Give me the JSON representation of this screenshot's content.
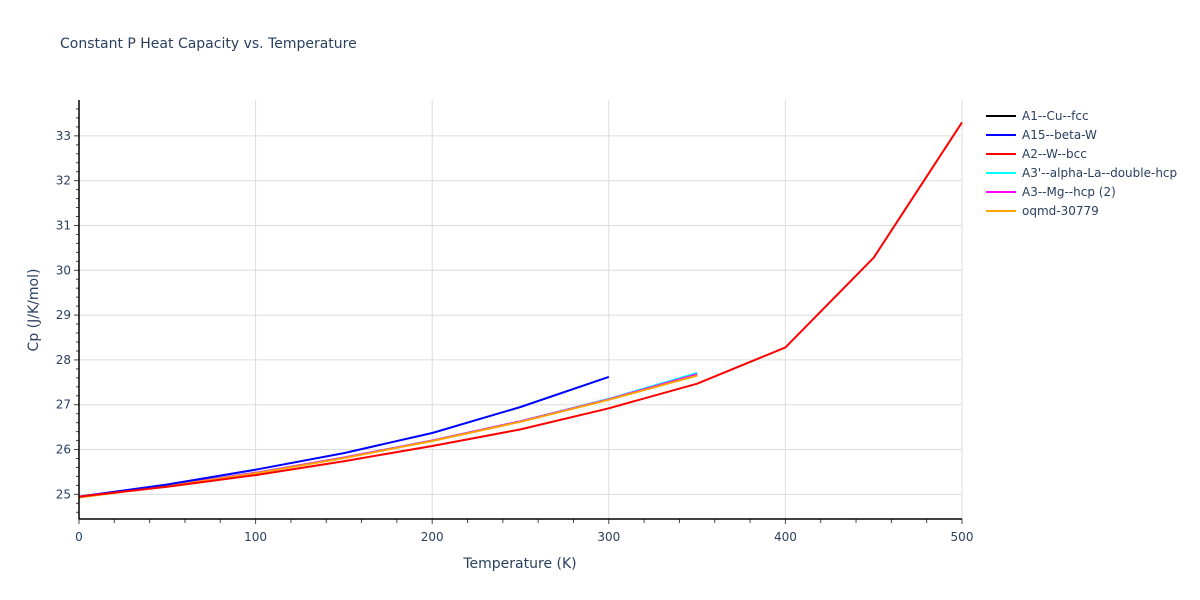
{
  "chart_data": {
    "type": "line",
    "title": "Constant P Heat Capacity vs. Temperature",
    "xlabel": "Temperature (K)",
    "ylabel": "Cp (J/K/mol)",
    "xlim": [
      0,
      500
    ],
    "ylim": [
      24.45,
      33.8
    ],
    "xticks": [
      0,
      100,
      200,
      300,
      400,
      500
    ],
    "yticks": [
      25,
      26,
      27,
      28,
      29,
      30,
      31,
      32,
      33
    ],
    "grid": true,
    "legend_position": "right",
    "series": [
      {
        "name": "A1--Cu--fcc",
        "color": "#000000",
        "x": [
          0,
          50,
          100,
          150,
          200,
          250,
          300,
          350
        ],
        "values": [
          24.94,
          25.19,
          25.48,
          25.82,
          26.2,
          26.63,
          27.12,
          27.68
        ]
      },
      {
        "name": "A15--beta-W",
        "color": "#0000ff",
        "x": [
          0,
          50,
          100,
          150,
          200,
          250,
          300
        ],
        "values": [
          24.95,
          25.22,
          25.55,
          25.92,
          26.37,
          26.95,
          27.62
        ]
      },
      {
        "name": "A2--W--bcc",
        "color": "#ff0000",
        "x": [
          0,
          50,
          100,
          150,
          200,
          250,
          300,
          350,
          400,
          450,
          500
        ],
        "values": [
          24.95,
          25.17,
          25.43,
          25.74,
          26.08,
          26.45,
          26.92,
          27.47,
          28.28,
          30.28,
          33.3
        ]
      },
      {
        "name": "A3'--alpha-La--double-hcp",
        "color": "#00ffff",
        "x": [
          0,
          50,
          100,
          150,
          200,
          250,
          300,
          350
        ],
        "values": [
          24.94,
          25.19,
          25.48,
          25.82,
          26.2,
          26.63,
          27.13,
          27.71
        ]
      },
      {
        "name": "A3--Mg--hcp (2)",
        "color": "#ff00ff",
        "x": [
          0,
          50,
          100,
          150,
          200,
          250,
          300,
          350
        ],
        "values": [
          24.94,
          25.19,
          25.48,
          25.82,
          26.2,
          26.63,
          27.12,
          27.68
        ]
      },
      {
        "name": "oqmd-30779",
        "color": "#ffa500",
        "x": [
          0,
          50,
          100,
          150,
          200,
          250,
          300,
          350
        ],
        "values": [
          24.93,
          25.18,
          25.47,
          25.81,
          26.19,
          26.62,
          27.11,
          27.65
        ]
      }
    ]
  }
}
